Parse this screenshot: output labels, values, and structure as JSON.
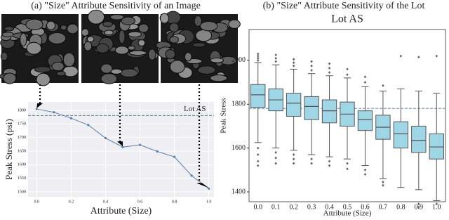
{
  "chart_data": [
    {
      "type": "line",
      "caption": "(a) \"Size\" Attribute Sensitivity of an Image",
      "x": [
        0.0,
        0.1,
        0.2,
        0.3,
        0.4,
        0.5,
        0.6,
        0.7,
        0.8,
        0.9,
        1.0
      ],
      "values": [
        1805,
        1793,
        1771,
        1746,
        1698,
        1665,
        1673,
        1649,
        1629,
        1560,
        1512
      ],
      "color": "#5b7fa6",
      "xlabel": "Attribute (Size)",
      "ylabel": "Peak Stress (psi)",
      "xlim": [
        -0.05,
        1.03
      ],
      "ylim": [
        1482,
        1831
      ],
      "xticks": [
        {
          "value": 0,
          "label": "0.0"
        },
        0.2,
        0.4,
        0.6,
        0.8,
        {
          "value": 1,
          "label": "1.0"
        }
      ],
      "yticks": [
        1500,
        1550,
        1600,
        1650,
        1700,
        1750,
        1800
      ],
      "reference_line": {
        "value": 1781,
        "label": "Lot AS",
        "color": "#4a8a86"
      },
      "grid": true
    },
    {
      "type": "box",
      "caption": "(b) \"Size\" Attribute Sensitivity of the Lot",
      "title": "Lot AS",
      "categories": [
        "0.0",
        "0.1",
        "0.2",
        "0.3",
        "0.4",
        "0.5",
        "0.6",
        "0.7",
        "0.8",
        "0.9",
        "1.0"
      ],
      "boxes": [
        {
          "whislo": 1625,
          "q1": 1785,
          "med": 1843,
          "q3": 1890,
          "whishi": 1990,
          "fliers": [
            2000,
            2010,
            2020,
            2030,
            1600,
            1570,
            1540,
            1520
          ]
        },
        {
          "whislo": 1600,
          "q1": 1770,
          "med": 1820,
          "q3": 1870,
          "whishi": 1980,
          "fliers": [
            1995,
            2010,
            2025,
            1580,
            1555,
            1530
          ]
        },
        {
          "whislo": 1590,
          "q1": 1745,
          "med": 1805,
          "q3": 1850,
          "whishi": 1960,
          "fliers": [
            1975,
            1990,
            2005,
            1570,
            1550,
            1530
          ]
        },
        {
          "whislo": 1570,
          "q1": 1730,
          "med": 1790,
          "q3": 1835,
          "whishi": 1940,
          "fliers": [
            1955,
            1975,
            1995,
            1550,
            1530
          ]
        },
        {
          "whislo": 1560,
          "q1": 1715,
          "med": 1770,
          "q3": 1820,
          "whishi": 1930,
          "fliers": [
            1945,
            1965,
            1985,
            1540,
            1520
          ]
        },
        {
          "whislo": 1550,
          "q1": 1700,
          "med": 1755,
          "q3": 1810,
          "whishi": 1920,
          "fliers": [
            1935,
            1960,
            1530,
            1505
          ]
        },
        {
          "whislo": 1520,
          "q1": 1680,
          "med": 1730,
          "q3": 1770,
          "whishi": 1880,
          "fliers": [
            1900,
            1925,
            1500,
            1480
          ]
        },
        {
          "whislo": 1460,
          "q1": 1640,
          "med": 1695,
          "q3": 1750,
          "whishi": 1860,
          "fliers": [
            1885,
            1445,
            1430
          ]
        },
        {
          "whislo": 1420,
          "q1": 1600,
          "med": 1665,
          "q3": 1720,
          "whishi": 1870,
          "fliers": [
            2020
          ]
        },
        {
          "whislo": 1410,
          "q1": 1580,
          "med": 1635,
          "q3": 1700,
          "whishi": 1860,
          "fliers": [
            2015,
            1345,
            1330
          ]
        },
        {
          "whislo": 1360,
          "q1": 1550,
          "med": 1605,
          "q3": 1665,
          "whishi": 1850,
          "fliers": [
            2020,
            1345
          ]
        }
      ],
      "color": "#9fd6e6",
      "xlabel": "Attribute (Size)",
      "ylabel": "Peak Stress",
      "ylim": [
        1355,
        2141
      ],
      "yticks": [
        1400,
        1600,
        1800,
        2000
      ],
      "reference_value": 1781
    }
  ]
}
